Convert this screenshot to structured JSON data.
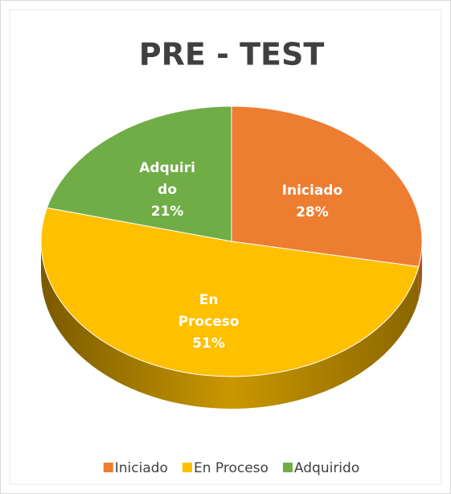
{
  "chart_data": {
    "type": "pie",
    "title": "PRE - TEST",
    "categories": [
      "Iniciado",
      "En Proceso",
      "Adquirido"
    ],
    "values": [
      28,
      51,
      21
    ],
    "value_labels": [
      "28%",
      "51%",
      "21%"
    ],
    "colors": [
      "#ED7D31",
      "#FFC000",
      "#70AD47"
    ],
    "legend": "bottom"
  }
}
